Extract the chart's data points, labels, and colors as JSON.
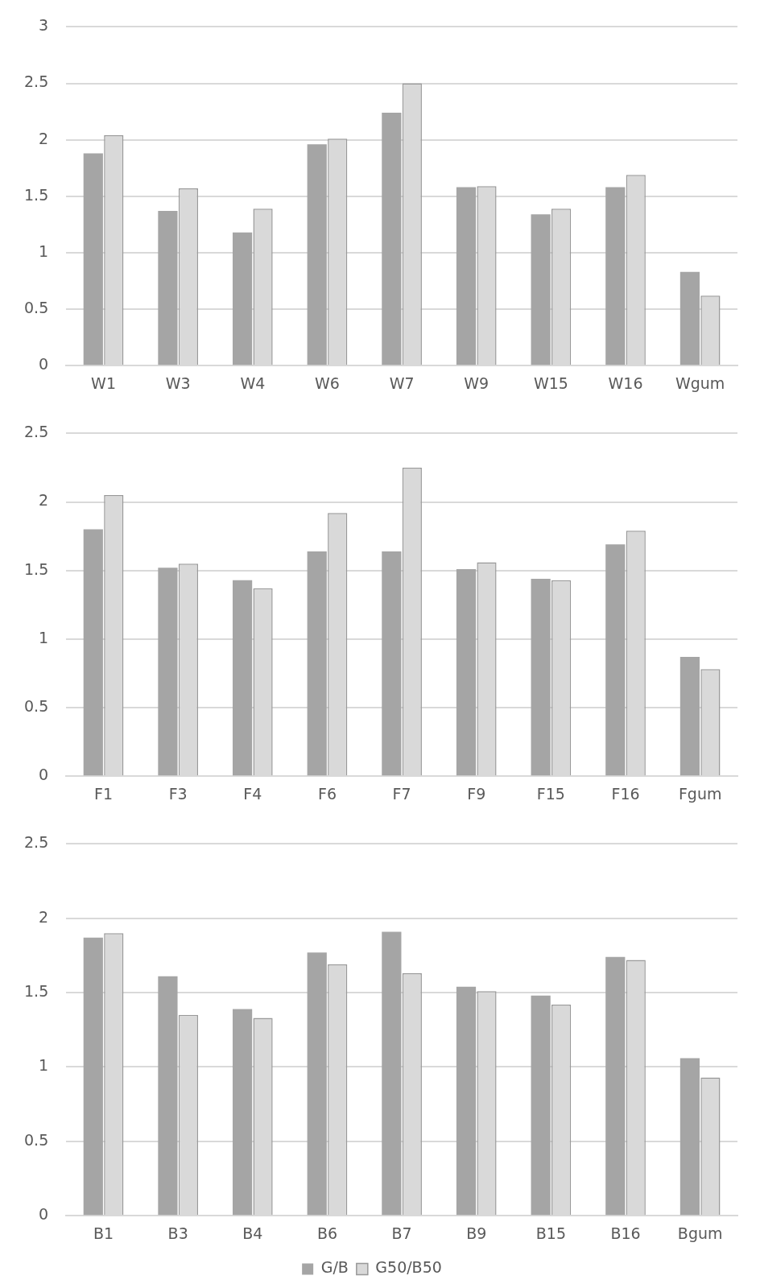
{
  "chart_data": [
    {
      "type": "bar",
      "categories": [
        "W1",
        "W3",
        "W4",
        "W6",
        "W7",
        "W9",
        "W15",
        "W16",
        "Wgum"
      ],
      "series": [
        {
          "color": "#a5a5a5",
          "values": [
            1.88,
            1.37,
            1.18,
            1.96,
            2.24,
            1.58,
            1.34,
            1.58,
            0.83
          ]
        },
        {
          "color": "#d9d9d9",
          "values": [
            2.04,
            1.57,
            1.39,
            2.01,
            2.5,
            1.59,
            1.39,
            1.69,
            0.62
          ]
        }
      ],
      "ylim": [
        0,
        3
      ],
      "yticks": [
        0,
        0.5,
        1,
        1.5,
        2,
        2.5,
        3
      ],
      "grid": "y",
      "legend": false
    },
    {
      "type": "bar",
      "categories": [
        "F1",
        "F3",
        "F4",
        "F6",
        "F7",
        "F9",
        "F15",
        "F16",
        "Fgum"
      ],
      "series": [
        {
          "color": "#a5a5a5",
          "values": [
            1.8,
            1.52,
            1.43,
            1.64,
            1.64,
            1.51,
            1.44,
            1.69,
            0.87
          ]
        },
        {
          "color": "#d9d9d9",
          "values": [
            2.05,
            1.55,
            1.37,
            1.92,
            2.25,
            1.56,
            1.43,
            1.79,
            0.78
          ]
        }
      ],
      "ylim": [
        0,
        2.5
      ],
      "yticks": [
        0,
        0.5,
        1,
        1.5,
        2,
        2.5
      ],
      "grid": "y",
      "legend": false
    },
    {
      "type": "bar",
      "categories": [
        "B1",
        "B3",
        "B4",
        "B6",
        "B7",
        "B9",
        "B15",
        "B16",
        "Bgum"
      ],
      "series": [
        {
          "name": "G/B",
          "color": "#a5a5a5",
          "values": [
            1.87,
            1.61,
            1.39,
            1.77,
            1.91,
            1.54,
            1.48,
            1.74,
            1.06
          ]
        },
        {
          "name": "G50/B50",
          "color": "#d9d9d9",
          "values": [
            1.9,
            1.35,
            1.33,
            1.69,
            1.63,
            1.51,
            1.42,
            1.72,
            0.93
          ]
        }
      ],
      "ylim": [
        0,
        2.5
      ],
      "yticks": [
        0,
        0.5,
        1,
        1.5,
        2,
        2.5
      ],
      "grid": "y",
      "legend": "bottom"
    }
  ]
}
